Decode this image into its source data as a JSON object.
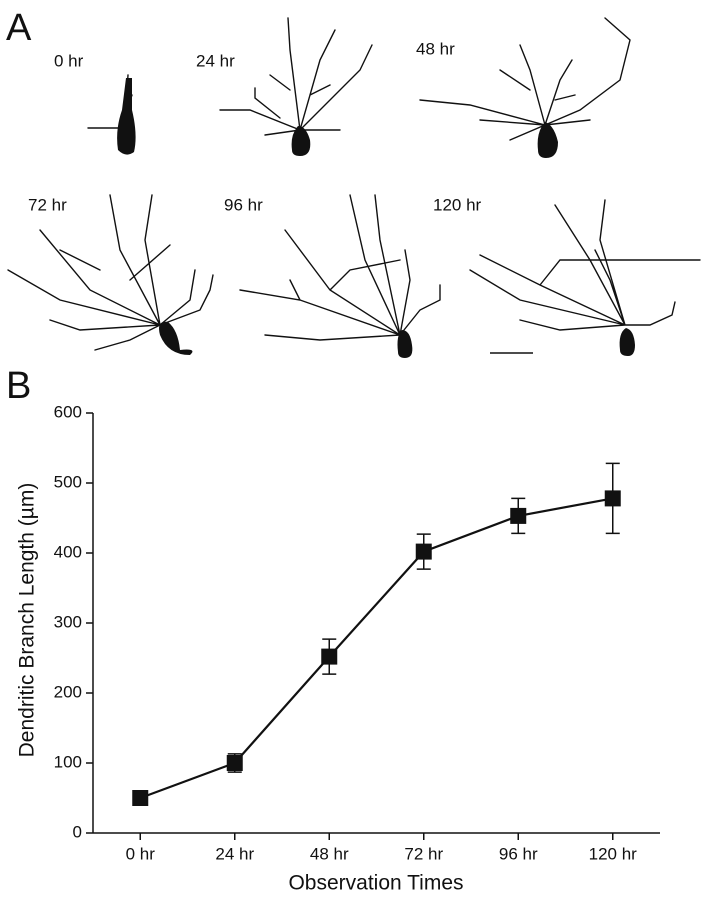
{
  "panel_a": {
    "label": "A",
    "times": [
      "0 hr",
      "24 hr",
      "48 hr",
      "72 hr",
      "96 hr",
      "120 hr"
    ]
  },
  "chart_data": {
    "type": "line",
    "panel_label": "B",
    "x_label": "Observation Times",
    "y_label": "Dendritic Branch Length (µm)",
    "categories": [
      "0 hr",
      "24 hr",
      "48 hr",
      "72 hr",
      "96 hr",
      "120 hr"
    ],
    "values": [
      50,
      100,
      252,
      402,
      453,
      478
    ],
    "errors": [
      3,
      13,
      25,
      25,
      25,
      50
    ],
    "color": "#111111",
    "ylim": [
      0,
      600
    ],
    "yticks": [
      0,
      100,
      200,
      300,
      400,
      500,
      600
    ]
  }
}
